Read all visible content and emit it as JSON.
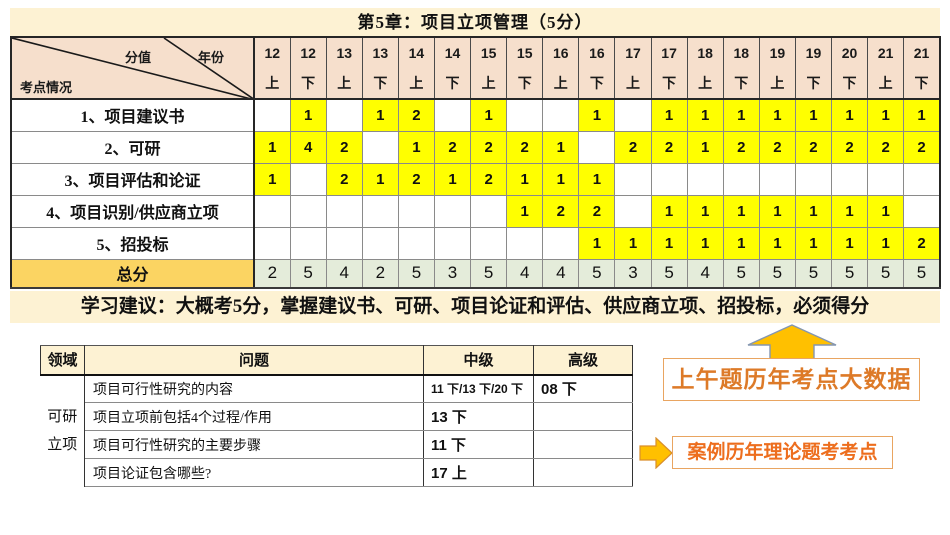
{
  "title": "第5章：项目立项管理（5分）",
  "main_table": {
    "corner": {
      "score_label": "分值",
      "year_label": "年份",
      "topic_label": "考点情况"
    },
    "year_columns": [
      {
        "year": "12",
        "half": "上"
      },
      {
        "year": "12",
        "half": "下"
      },
      {
        "year": "13",
        "half": "上"
      },
      {
        "year": "13",
        "half": "下"
      },
      {
        "year": "14",
        "half": "上"
      },
      {
        "year": "14",
        "half": "下"
      },
      {
        "year": "15",
        "half": "上"
      },
      {
        "year": "15",
        "half": "下"
      },
      {
        "year": "16",
        "half": "上"
      },
      {
        "year": "16",
        "half": "下"
      },
      {
        "year": "17",
        "half": "上"
      },
      {
        "year": "17",
        "half": "下"
      },
      {
        "year": "18",
        "half": "上"
      },
      {
        "year": "18",
        "half": "下"
      },
      {
        "year": "19",
        "half": "上"
      },
      {
        "year": "19",
        "half": "下"
      },
      {
        "year": "20",
        "half": "下"
      },
      {
        "year": "21",
        "half": "上"
      },
      {
        "year": "21",
        "half": "下"
      }
    ],
    "rows": [
      {
        "label": "1、项目建议书",
        "values": [
          "",
          "1",
          "",
          "1",
          "2",
          "",
          "1",
          "",
          "",
          "1",
          "",
          "1",
          "1",
          "1",
          "1",
          "1",
          "1",
          "1",
          "1"
        ]
      },
      {
        "label": "2、可研",
        "values": [
          "1",
          "4",
          "2",
          "",
          "1",
          "2",
          "2",
          "2",
          "1",
          "",
          "2",
          "2",
          "1",
          "2",
          "2",
          "2",
          "2",
          "2",
          "2"
        ]
      },
      {
        "label": "3、项目评估和论证",
        "values": [
          "1",
          "",
          "2",
          "1",
          "2",
          "1",
          "2",
          "1",
          "1",
          "1",
          "",
          "",
          "",
          "",
          "",
          "",
          "",
          "",
          ""
        ]
      },
      {
        "label": "4、项目识别/供应商立项",
        "values": [
          "",
          "",
          "",
          "",
          "",
          "",
          "",
          "1",
          "2",
          "2",
          "",
          "1",
          "1",
          "1",
          "1",
          "1",
          "1",
          "1",
          ""
        ]
      },
      {
        "label": "5、招投标",
        "values": [
          "",
          "",
          "",
          "",
          "",
          "",
          "",
          "",
          "",
          "1",
          "1",
          "1",
          "1",
          "1",
          "1",
          "1",
          "1",
          "1",
          "2"
        ]
      }
    ],
    "total_row": {
      "label": "总分",
      "values": [
        "2",
        "5",
        "4",
        "2",
        "5",
        "3",
        "5",
        "4",
        "4",
        "5",
        "3",
        "5",
        "4",
        "5",
        "5",
        "5",
        "5",
        "5",
        "5"
      ]
    }
  },
  "advice": "学习建议：大概考5分，掌握建议书、可研、项目论证和评估、供应商立项、招投标，必须得分",
  "qa_table": {
    "headers": {
      "domain": "领域",
      "question": "问题",
      "intermediate": "中级",
      "advanced": "高级"
    },
    "domain_lines": [
      "可研",
      "立项"
    ],
    "rows": [
      {
        "question": "项目可行性研究的内容",
        "intermediate": "11 下/13 下/20 下",
        "advanced": "08 下"
      },
      {
        "question": "项目立项前包括4个过程/作用",
        "intermediate": "13 下",
        "advanced": ""
      },
      {
        "question": "项目可行性研究的主要步骤",
        "intermediate": "11 下",
        "advanced": ""
      },
      {
        "question": "项目论证包含哪些?",
        "intermediate": "17 上",
        "advanced": ""
      }
    ]
  },
  "callouts": {
    "morning": "上午题历年考点大数据",
    "case": "案例历年理论题考考点"
  },
  "colors": {
    "title_cream": "#FDF2D3",
    "header_pink": "#F6DFCC",
    "highlight_yellow": "#FFFF00",
    "total_label_gold": "#FBD462",
    "total_value_green": "#E4ECDA",
    "callout_text_orange": "#DD7A28",
    "callout_border_orange": "#E9A561",
    "arrow_gold": "#FFC000",
    "arrow_outline": "#8496B0"
  }
}
